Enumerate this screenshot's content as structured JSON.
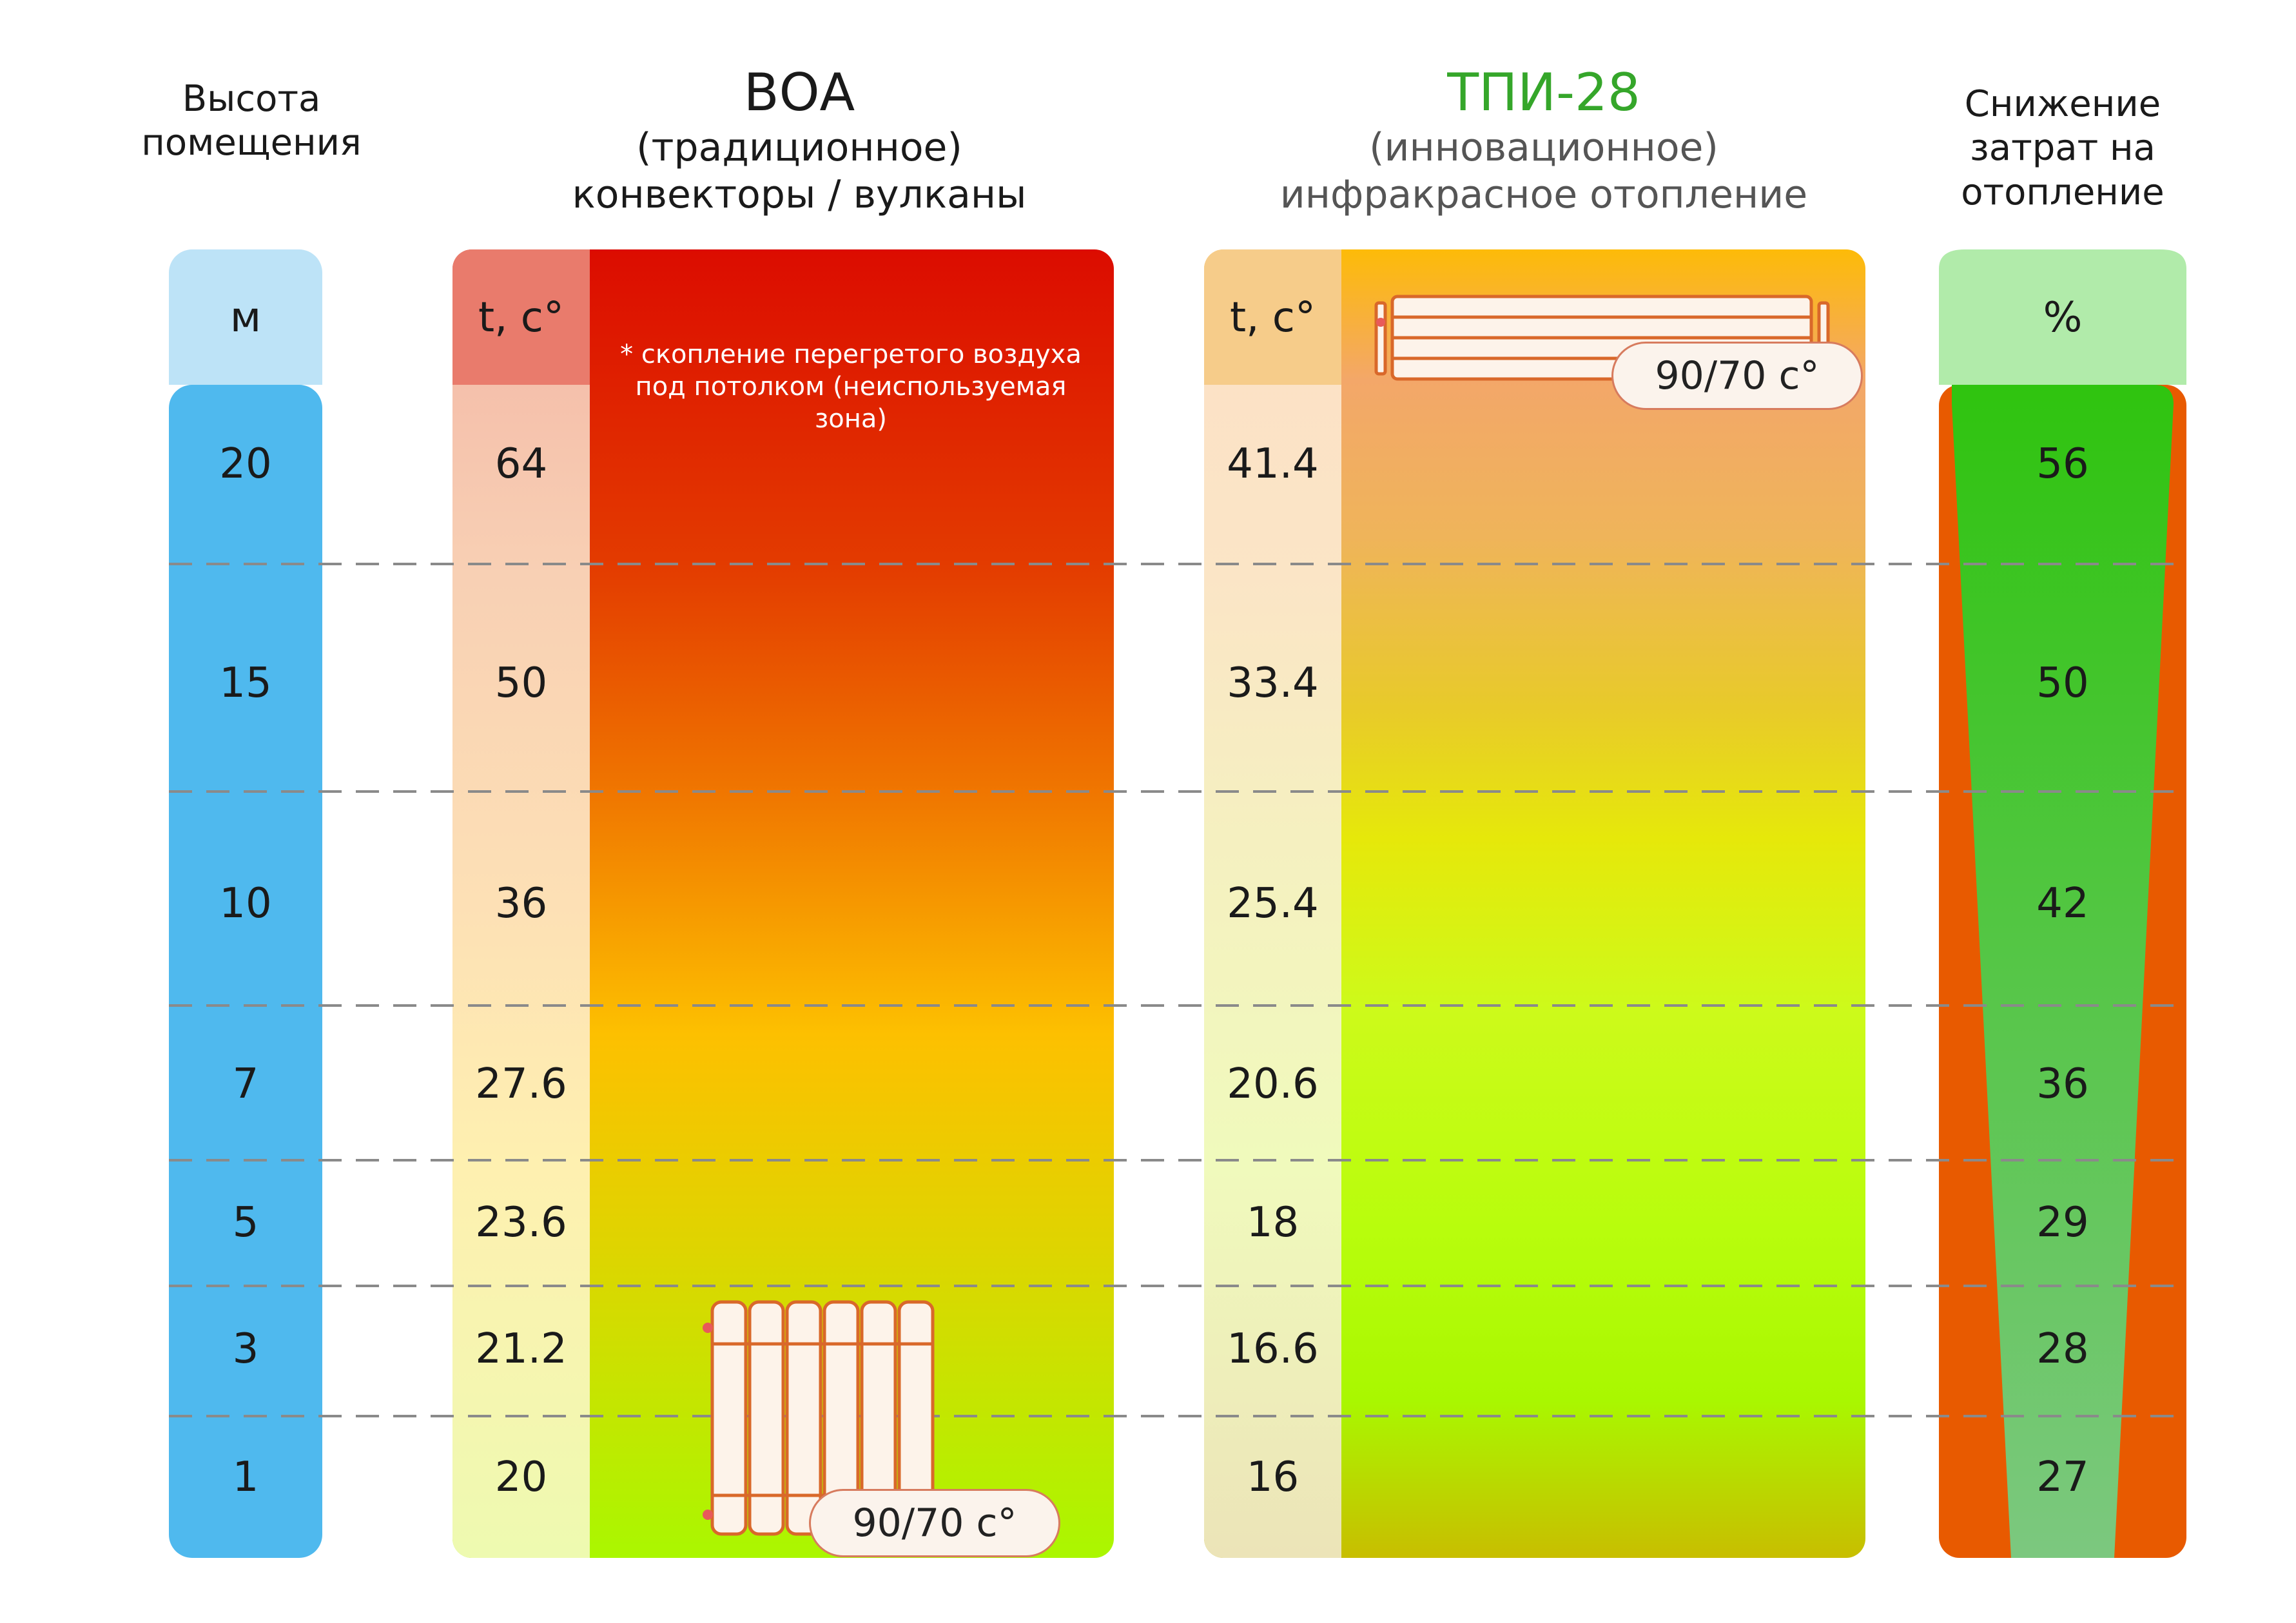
{
  "headers": {
    "height": "Высота помещения",
    "voa_title": "ВОА",
    "voa_sub1": "(традиционное)",
    "voa_sub2": "конвекторы / вулканы",
    "tpi_title": "ТПИ-28",
    "tpi_sub1": "(инновационное)",
    "tpi_sub2": "инфракрасное отопление",
    "savings": "Снижение затрат на отопление"
  },
  "units": {
    "height": "м",
    "voa_temp": "t, c°",
    "tpi_temp": "t, c°",
    "savings": "%"
  },
  "note": "* скопление перегретого воздуха под потолком (неиспользуемая зона)",
  "voa_badge": "90/70  c°",
  "tpi_badge": "90/70  c°",
  "colors": {
    "height_column": "#4fb9ee",
    "voa_hot": "#dc0c00",
    "voa_cool": "#aaf700",
    "tpi_title": "#35a62a",
    "savings_green": "#2fc40f",
    "savings_orange": "#e85a00"
  },
  "icons": [
    "radiator-icon",
    "panel-heater-icon"
  ],
  "chart_data": {
    "type": "table",
    "columns": [
      "Высота помещения",
      "ВОА t, c°",
      "ТПИ-28 t, c°",
      "Снижение затрат на отопление, %"
    ],
    "rows": [
      {
        "height": "20",
        "voa": "64",
        "tpi": "41.4",
        "saving": "56"
      },
      {
        "height": "15",
        "voa": "50",
        "tpi": "33.4",
        "saving": "50"
      },
      {
        "height": "10",
        "voa": "36",
        "tpi": "25.4",
        "saving": "42"
      },
      {
        "height": "7",
        "voa": "27.6",
        "tpi": "20.6",
        "saving": "36"
      },
      {
        "height": "5",
        "voa": "23.6",
        "tpi": "18",
        "saving": "29"
      },
      {
        "height": "3",
        "voa": "21.2",
        "tpi": "16.6",
        "saving": "28"
      },
      {
        "height": "1",
        "voa": "20",
        "tpi": "16",
        "saving": "27"
      }
    ]
  }
}
